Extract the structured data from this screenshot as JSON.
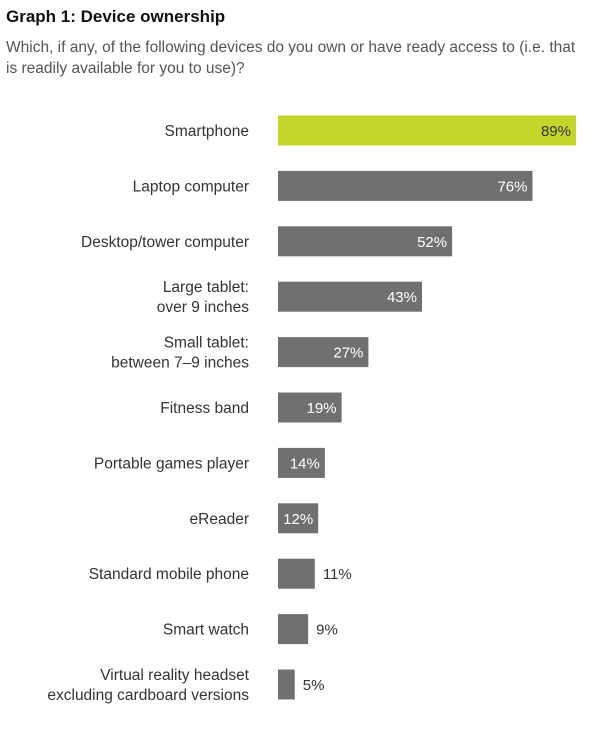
{
  "header": {
    "title": "Graph 1: Device ownership",
    "subtitle": "Which, if any, of the following devices do you own or have ready access to (i.e. that is readily available for you to use)?"
  },
  "colors": {
    "highlight": "#c5d62b",
    "bar": "#6f7071",
    "label_on_bar": "#ffffff",
    "label_off_bar": "#333333",
    "category_text": "#333333"
  },
  "chart_data": {
    "type": "bar",
    "orientation": "horizontal",
    "categories": [
      [
        "Smartphone"
      ],
      [
        "Laptop computer"
      ],
      [
        "Desktop/tower computer"
      ],
      [
        "Large tablet:",
        "over 9 inches"
      ],
      [
        "Small tablet:",
        "between 7–9 inches"
      ],
      [
        "Fitness band"
      ],
      [
        "Portable games player"
      ],
      [
        "eReader"
      ],
      [
        "Standard mobile phone"
      ],
      [
        "Smart watch"
      ],
      [
        "Virtual reality headset",
        "excluding cardboard versions"
      ]
    ],
    "values": [
      89,
      76,
      52,
      43,
      27,
      19,
      14,
      12,
      11,
      9,
      5
    ],
    "value_labels": [
      "89%",
      "76%",
      "52%",
      "43%",
      "27%",
      "19%",
      "14%",
      "12%",
      "11%",
      "9%",
      "5%"
    ],
    "highlight_index": 0,
    "xlim": [
      0,
      89
    ],
    "grid": false,
    "legend": "none"
  }
}
